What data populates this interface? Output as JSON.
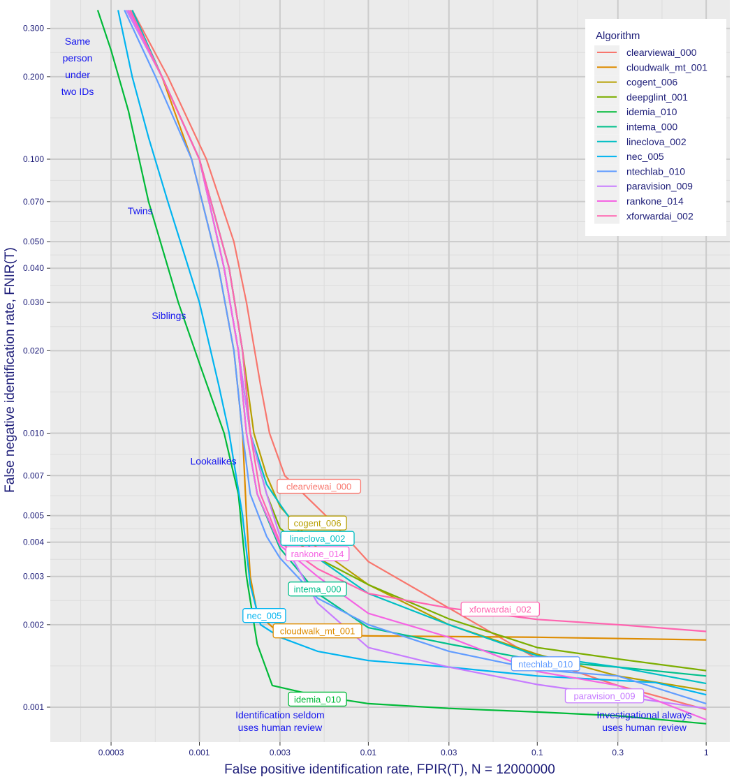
{
  "chart_data": {
    "type": "line",
    "xlabel": "False positive identification rate, FPIR(T), N = 12000000",
    "ylabel": "False negative identification rate, FNIR(T)",
    "x_scale": "log",
    "y_scale": "log",
    "xlim": [
      0.000131,
      1.38
    ],
    "ylim": [
      0.000695,
      0.381
    ],
    "x_ticks": [
      0.0003,
      0.001,
      0.003,
      0.01,
      0.03,
      0.1,
      0.3,
      1
    ],
    "x_tick_labels": [
      "0.0003",
      "0.001",
      "0.003",
      "0.01",
      "0.03",
      "0.1",
      "0.3",
      "1"
    ],
    "y_ticks": [
      0.3,
      0.2,
      0.1,
      0.07,
      0.05,
      0.04,
      0.03,
      0.02,
      0.01,
      0.007,
      0.005,
      0.004,
      0.003,
      0.002,
      0.001
    ],
    "y_tick_labels": [
      "0.300",
      "0.200",
      "0.100",
      "0.070",
      "0.050",
      "0.040",
      "0.030",
      "0.020",
      "0.010",
      "0.007",
      "0.005",
      "0.004",
      "0.003",
      "0.002",
      "0.001"
    ],
    "grid": true,
    "legend": {
      "title": "Algorithm",
      "placement": "top-right"
    },
    "series": [
      {
        "name": "clearviewai_000",
        "color": "#F8766D",
        "label_at": [
          0.0051,
          0.0064
        ],
        "points": [
          [
            0.0004,
            0.35
          ],
          [
            0.00065,
            0.2
          ],
          [
            0.0011,
            0.1
          ],
          [
            0.0016,
            0.05
          ],
          [
            0.0019,
            0.03
          ],
          [
            0.0023,
            0.015
          ],
          [
            0.0026,
            0.01
          ],
          [
            0.0032,
            0.007
          ],
          [
            0.006,
            0.0048
          ],
          [
            0.01,
            0.0034
          ],
          [
            0.03,
            0.0023
          ],
          [
            0.1,
            0.0015
          ],
          [
            0.3,
            0.0012
          ],
          [
            1,
            0.00098
          ]
        ]
      },
      {
        "name": "cloudwalk_mt_001",
        "color": "#DE8C00",
        "label_at": [
          0.005,
          0.00195
        ],
        "points": [
          [
            0.00037,
            0.35
          ],
          [
            0.0006,
            0.2
          ],
          [
            0.0009,
            0.1
          ],
          [
            0.0013,
            0.04
          ],
          [
            0.0016,
            0.02
          ],
          [
            0.0018,
            0.01
          ],
          [
            0.0019,
            0.005
          ],
          [
            0.002,
            0.003
          ],
          [
            0.0022,
            0.0022
          ],
          [
            0.003,
            0.00185
          ],
          [
            0.01,
            0.00182
          ],
          [
            0.1,
            0.0018
          ],
          [
            1,
            0.00176
          ]
        ]
      },
      {
        "name": "cogent_006",
        "color": "#B79F00",
        "label_at": [
          0.005,
          0.0047
        ],
        "points": [
          [
            0.0004,
            0.35
          ],
          [
            0.0006,
            0.2
          ],
          [
            0.001,
            0.1
          ],
          [
            0.0015,
            0.04
          ],
          [
            0.0018,
            0.02
          ],
          [
            0.0021,
            0.01
          ],
          [
            0.0025,
            0.007
          ],
          [
            0.003,
            0.0054
          ],
          [
            0.005,
            0.0038
          ],
          [
            0.01,
            0.0028
          ],
          [
            0.03,
            0.002
          ],
          [
            0.1,
            0.00156
          ],
          [
            0.3,
            0.0013
          ],
          [
            1,
            0.00115
          ]
        ]
      },
      {
        "name": "deepglint_001",
        "color": "#7CAE00",
        "points": [
          [
            0.00039,
            0.35
          ],
          [
            0.0006,
            0.2
          ],
          [
            0.001,
            0.1
          ],
          [
            0.0014,
            0.04
          ],
          [
            0.0017,
            0.02
          ],
          [
            0.002,
            0.01
          ],
          [
            0.0025,
            0.006
          ],
          [
            0.003,
            0.0045
          ],
          [
            0.005,
            0.0035
          ],
          [
            0.01,
            0.0028
          ],
          [
            0.03,
            0.0021
          ],
          [
            0.1,
            0.00165
          ],
          [
            0.3,
            0.0015
          ],
          [
            1,
            0.00136
          ]
        ]
      },
      {
        "name": "idemia_010",
        "color": "#00BA38",
        "label_at": [
          0.005,
          0.00107
        ],
        "points": [
          [
            0.00025,
            0.35
          ],
          [
            0.0003,
            0.25
          ],
          [
            0.00038,
            0.15
          ],
          [
            0.0005,
            0.07
          ],
          [
            0.00075,
            0.03
          ],
          [
            0.001,
            0.018
          ],
          [
            0.0014,
            0.01
          ],
          [
            0.0017,
            0.006
          ],
          [
            0.0019,
            0.003
          ],
          [
            0.0022,
            0.0017
          ],
          [
            0.0027,
            0.0012
          ],
          [
            0.005,
            0.0011
          ],
          [
            0.01,
            0.00103
          ],
          [
            0.03,
            0.00099
          ],
          [
            0.1,
            0.00096
          ],
          [
            0.3,
            0.00093
          ],
          [
            1,
            0.00087
          ]
        ]
      },
      {
        "name": "intema_000",
        "color": "#00C08B",
        "label_at": [
          0.005,
          0.0027
        ],
        "points": [
          [
            0.00038,
            0.35
          ],
          [
            0.0006,
            0.2
          ],
          [
            0.001,
            0.1
          ],
          [
            0.0014,
            0.04
          ],
          [
            0.0017,
            0.02
          ],
          [
            0.0019,
            0.01
          ],
          [
            0.0022,
            0.006
          ],
          [
            0.003,
            0.0038
          ],
          [
            0.005,
            0.0026
          ],
          [
            0.01,
            0.00195
          ],
          [
            0.03,
            0.0017
          ],
          [
            0.1,
            0.00148
          ],
          [
            0.3,
            0.0014
          ],
          [
            1,
            0.0013
          ]
        ]
      },
      {
        "name": "lineclova_002",
        "color": "#00BFC4",
        "label_at": [
          0.005,
          0.0042
        ],
        "points": [
          [
            0.0004,
            0.35
          ],
          [
            0.0006,
            0.2
          ],
          [
            0.001,
            0.1
          ],
          [
            0.0015,
            0.04
          ],
          [
            0.0018,
            0.02
          ],
          [
            0.002,
            0.01
          ],
          [
            0.0025,
            0.0065
          ],
          [
            0.003,
            0.0055
          ],
          [
            0.005,
            0.0035
          ],
          [
            0.01,
            0.0026
          ],
          [
            0.03,
            0.002
          ],
          [
            0.1,
            0.00154
          ],
          [
            0.3,
            0.0014
          ],
          [
            1,
            0.00122
          ]
        ]
      },
      {
        "name": "nec_005",
        "color": "#00B4F0",
        "label_at": [
          0.00242,
          0.00216
        ],
        "points": [
          [
            0.00033,
            0.35
          ],
          [
            0.0004,
            0.2
          ],
          [
            0.0005,
            0.12
          ],
          [
            0.00065,
            0.07
          ],
          [
            0.001,
            0.03
          ],
          [
            0.0013,
            0.015
          ],
          [
            0.0015,
            0.01
          ],
          [
            0.0018,
            0.005
          ],
          [
            0.002,
            0.0028
          ],
          [
            0.0023,
            0.002
          ],
          [
            0.003,
            0.0018
          ],
          [
            0.005,
            0.0016
          ],
          [
            0.01,
            0.00148
          ],
          [
            0.03,
            0.0014
          ],
          [
            0.1,
            0.0013
          ],
          [
            0.5,
            0.00123
          ],
          [
            1,
            0.00111
          ]
        ]
      },
      {
        "name": "ntechlab_010",
        "color": "#619CFF",
        "label_at": [
          0.112,
          0.00144
        ],
        "points": [
          [
            0.00036,
            0.35
          ],
          [
            0.00055,
            0.2
          ],
          [
            0.0009,
            0.1
          ],
          [
            0.0013,
            0.04
          ],
          [
            0.0016,
            0.02
          ],
          [
            0.0018,
            0.01
          ],
          [
            0.002,
            0.006
          ],
          [
            0.0025,
            0.0042
          ],
          [
            0.003,
            0.0035
          ],
          [
            0.005,
            0.0025
          ],
          [
            0.01,
            0.002
          ],
          [
            0.03,
            0.0016
          ],
          [
            0.1,
            0.00137
          ],
          [
            0.3,
            0.0013
          ],
          [
            1,
            0.00103
          ]
        ]
      },
      {
        "name": "paravision_009",
        "color": "#C77CFF",
        "label_at": [
          0.25,
          0.0011
        ],
        "points": [
          [
            0.00037,
            0.35
          ],
          [
            0.0006,
            0.2
          ],
          [
            0.001,
            0.1
          ],
          [
            0.0014,
            0.04
          ],
          [
            0.0017,
            0.02
          ],
          [
            0.002,
            0.01
          ],
          [
            0.0025,
            0.006
          ],
          [
            0.003,
            0.0042
          ],
          [
            0.005,
            0.0024
          ],
          [
            0.01,
            0.00165
          ],
          [
            0.03,
            0.0014
          ],
          [
            0.1,
            0.00121
          ],
          [
            0.3,
            0.0011
          ],
          [
            1,
            0.00099
          ]
        ]
      },
      {
        "name": "rankone_014",
        "color": "#F564E3",
        "label_at": [
          0.005,
          0.00363
        ],
        "points": [
          [
            0.00038,
            0.35
          ],
          [
            0.0006,
            0.2
          ],
          [
            0.001,
            0.1
          ],
          [
            0.0014,
            0.04
          ],
          [
            0.0017,
            0.02
          ],
          [
            0.0019,
            0.01
          ],
          [
            0.0022,
            0.006
          ],
          [
            0.003,
            0.0039
          ],
          [
            0.005,
            0.003
          ],
          [
            0.01,
            0.0022
          ],
          [
            0.03,
            0.0018
          ],
          [
            0.1,
            0.00135
          ],
          [
            0.3,
            0.0012
          ],
          [
            1,
            0.0009
          ]
        ]
      },
      {
        "name": "xforwardai_002",
        "color": "#FF64B0",
        "label_at": [
          0.0604,
          0.00228
        ],
        "points": [
          [
            0.00039,
            0.35
          ],
          [
            0.0006,
            0.2
          ],
          [
            0.001,
            0.1
          ],
          [
            0.0015,
            0.04
          ],
          [
            0.0018,
            0.02
          ],
          [
            0.002,
            0.01
          ],
          [
            0.0023,
            0.006
          ],
          [
            0.003,
            0.004
          ],
          [
            0.005,
            0.0032
          ],
          [
            0.01,
            0.0026
          ],
          [
            0.03,
            0.0023
          ],
          [
            0.1,
            0.00209
          ],
          [
            0.3,
            0.002
          ],
          [
            1,
            0.00189
          ]
        ]
      }
    ],
    "annotations": [
      {
        "lines": [
          "Same",
          "person",
          "under",
          "two IDs"
        ],
        "at": [
          0.00019,
          0.218
        ]
      },
      {
        "lines": [
          "Twins"
        ],
        "at": [
          0.000446,
          0.0648
        ]
      },
      {
        "lines": [
          "Siblings"
        ],
        "at": [
          0.00066,
          0.0269
        ]
      },
      {
        "lines": [
          "Lookalikes"
        ],
        "at": [
          0.00121,
          0.0079
        ]
      },
      {
        "lines": [
          "Identification seldom",
          "uses human review"
        ],
        "at": [
          0.003,
          0.00089
        ]
      },
      {
        "lines": [
          "Investigational always",
          "uses human review"
        ],
        "at": [
          0.43,
          0.00089
        ]
      }
    ],
    "colors": {
      "panel": "#EBEBEB",
      "text": "#1c1c78",
      "annotation": "#1515ee"
    }
  }
}
